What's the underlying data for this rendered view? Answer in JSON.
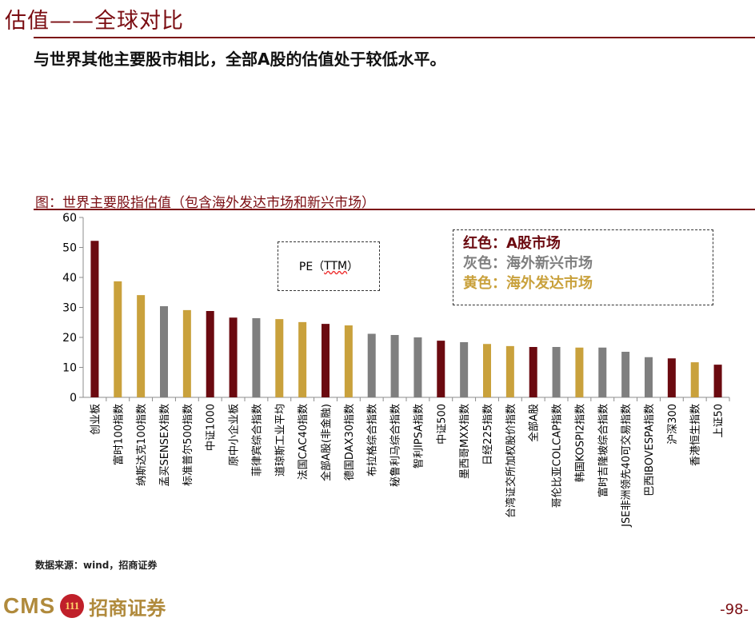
{
  "slide": {
    "title": "估值——全球对比",
    "subtitle": "与世界其他主要股市相比，全部A股的估值处于较低水平。",
    "figure_caption": "图：世界主要股指估值（包含海外发达市场和新兴市场）",
    "source": "数据来源：wind，招商证券",
    "page_number": "-98-",
    "logo_latin": "CMS",
    "logo_mark": "111",
    "logo_cn": "招商证券"
  },
  "annotation": {
    "pe_prefix": "PE（",
    "pe_ttm": "TTM",
    "pe_suffix": "）"
  },
  "legend": {
    "red_label": "红色：",
    "red_text": "A股市场",
    "gray_label": "灰色：",
    "gray_text": "海外新兴市场",
    "gold_label": "黄色：",
    "gold_text": "海外发达市场"
  },
  "colors": {
    "red": "#6b0a10",
    "gray": "#7f7f7f",
    "gold": "#c9a13c",
    "accent": "#7b0d12"
  },
  "chart_data": {
    "type": "bar",
    "title": "世界主要股指估值（包含海外发达市场和新兴市场）",
    "xlabel": "",
    "ylabel": "",
    "ylim": [
      0,
      60
    ],
    "yticks": [
      0,
      10,
      20,
      30,
      40,
      50,
      60
    ],
    "grid": false,
    "categories": [
      "创业板",
      "富时100指数",
      "纳斯达克100指数",
      "孟买SENSEX指数",
      "标准普尔500指数",
      "中证1000",
      "原中小企业板",
      "菲律宾综合指数",
      "道琼斯工业平均",
      "法国CAC40指数",
      "全部A股(非金融)",
      "德国DAX30指数",
      "布拉格综合指数",
      "秘鲁利马综合指数",
      "智利IPSA指数",
      "中证500",
      "墨西哥MXX指数",
      "日经225指数",
      "台湾证交所加权股价指数",
      "全部A股",
      "哥伦比亚COLCAP指数",
      "韩国KOSPI2指数",
      "富时吉隆坡综合指数",
      "JSE非洲领先40可交易指数",
      "巴西IBOVESPA指数",
      "沪深300",
      "香港恒生指数",
      "上证50"
    ],
    "values": [
      52.2,
      38.7,
      34.1,
      30.4,
      29.1,
      28.8,
      26.6,
      26.4,
      26.1,
      25.1,
      24.5,
      24.0,
      21.2,
      20.8,
      20.0,
      18.9,
      18.4,
      17.8,
      17.1,
      16.8,
      16.8,
      16.6,
      16.6,
      15.2,
      13.4,
      13.0,
      11.7,
      10.9
    ],
    "groups": [
      "red",
      "gold",
      "gold",
      "gray",
      "gold",
      "red",
      "red",
      "gray",
      "gold",
      "gold",
      "red",
      "gold",
      "gray",
      "gray",
      "gray",
      "red",
      "gray",
      "gold",
      "gold",
      "red",
      "gray",
      "gold",
      "gray",
      "gray",
      "gray",
      "red",
      "gold",
      "red"
    ]
  }
}
